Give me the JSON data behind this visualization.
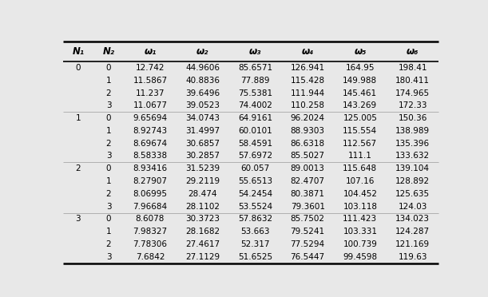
{
  "headers": [
    "N₁",
    "N₂",
    "ω₁",
    "ω₂",
    "ω₃",
    "ω₄",
    "ω₅",
    "ω₆"
  ],
  "rows": [
    [
      "0",
      "0",
      "12.742",
      "44.9606",
      "85.6571",
      "126.941",
      "164.95",
      "198.41"
    ],
    [
      "",
      "1",
      "11.5867",
      "40.8836",
      "77.889",
      "115.428",
      "149.988",
      "180.411"
    ],
    [
      "",
      "2",
      "11.237",
      "39.6496",
      "75.5381",
      "111.944",
      "145.461",
      "174.965"
    ],
    [
      "",
      "3",
      "11.0677",
      "39.0523",
      "74.4002",
      "110.258",
      "143.269",
      "172.33"
    ],
    [
      "1",
      "0",
      "9.65694",
      "34.0743",
      "64.9161",
      "96.2024",
      "125.005",
      "150.36"
    ],
    [
      "",
      "1",
      "8.92743",
      "31.4997",
      "60.0101",
      "88.9303",
      "115.554",
      "138.989"
    ],
    [
      "",
      "2",
      "8.69674",
      "30.6857",
      "58.4591",
      "86.6318",
      "112.567",
      "135.396"
    ],
    [
      "",
      "3",
      "8.58338",
      "30.2857",
      "57.6972",
      "85.5027",
      "111.1",
      "133.632"
    ],
    [
      "2",
      "0",
      "8.93416",
      "31.5239",
      "60.057",
      "89.0013",
      "115.648",
      "139.104"
    ],
    [
      "",
      "1",
      "8.27907",
      "29.2119",
      "55.6513",
      "82.4707",
      "107.16",
      "128.892"
    ],
    [
      "",
      "2",
      "8.06995",
      "28.474",
      "54.2454",
      "80.3871",
      "104.452",
      "125.635"
    ],
    [
      "",
      "3",
      "7.96684",
      "28.1102",
      "53.5524",
      "79.3601",
      "103.118",
      "124.03"
    ],
    [
      "3",
      "0",
      "8.6078",
      "30.3723",
      "57.8632",
      "85.7502",
      "111.423",
      "134.023"
    ],
    [
      "",
      "1",
      "7.98327",
      "28.1682",
      "53.663",
      "79.5241",
      "103.331",
      "124.287"
    ],
    [
      "",
      "2",
      "7.78306",
      "27.4617",
      "52.317",
      "77.5294",
      "100.739",
      "121.169"
    ],
    [
      "",
      "3",
      "7.6842",
      "27.1129",
      "51.6525",
      "76.5447",
      "99.4598",
      "119.63"
    ]
  ],
  "background_color": "#e8e8e8",
  "separator_rows": [
    3,
    7,
    11
  ],
  "col_props": [
    0.072,
    0.072,
    0.124,
    0.124,
    0.124,
    0.124,
    0.124,
    0.124
  ],
  "header_fontsize": 8.5,
  "data_fontsize": 7.5
}
